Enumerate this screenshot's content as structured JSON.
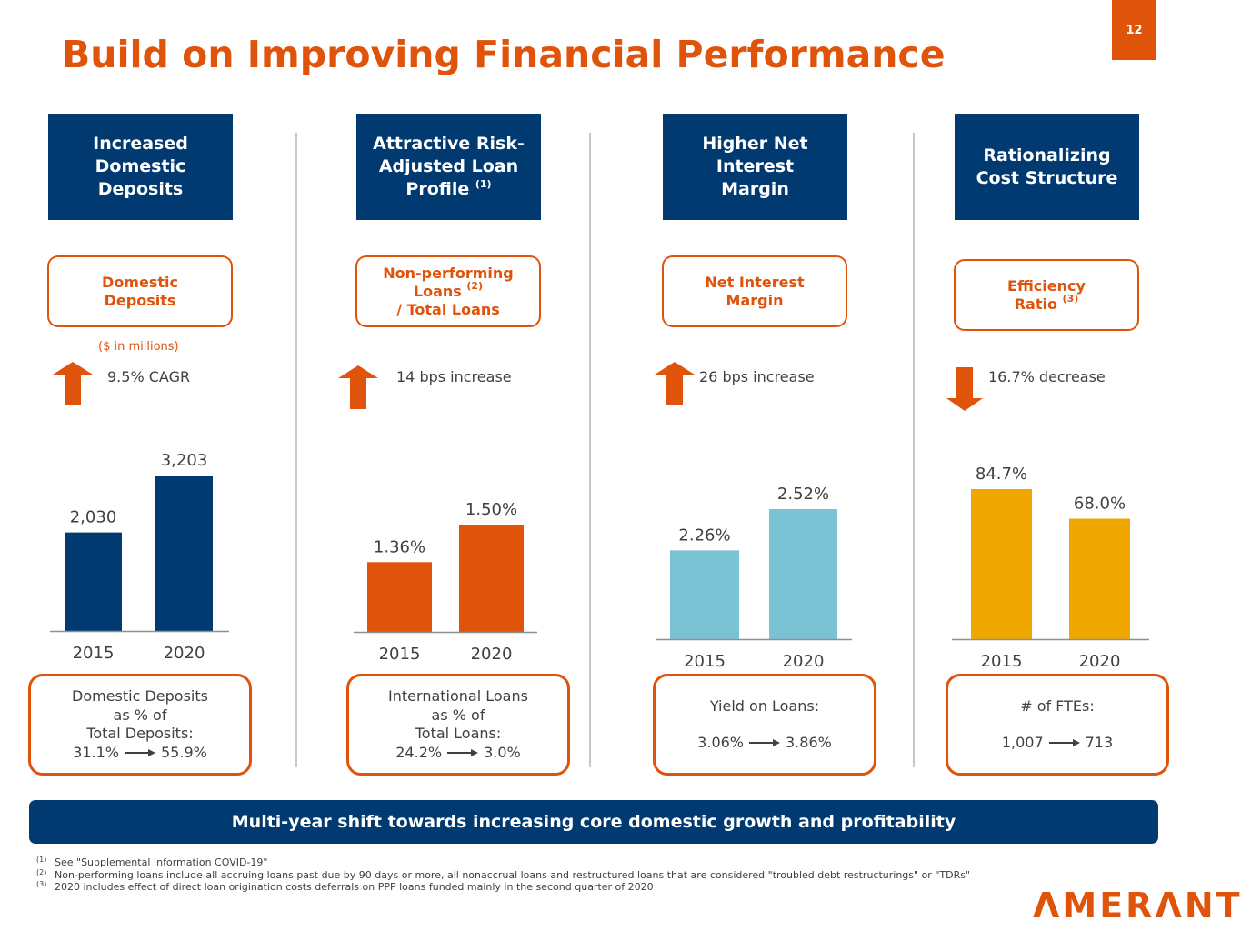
{
  "page": {
    "title": "Build on Improving Financial Performance",
    "page_number": "12"
  },
  "colors": {
    "accent_orange": "#E0530B",
    "navy": "#003A70",
    "light_blue": "#79C3D5",
    "gold": "#F0A800",
    "text_gray": "#404040"
  },
  "columns": [
    {
      "heading": [
        "Increased",
        "Domestic",
        "Deposits"
      ],
      "heading_sup": "",
      "metric": [
        "Domestic",
        "Deposits"
      ],
      "metric_sup": "",
      "units": "($ in millions)",
      "direction": "up",
      "change_text": "9.5% CAGR",
      "bottom": {
        "lines": [
          "Domestic Deposits",
          "as % of",
          "Total Deposits:"
        ],
        "from": "31.1%",
        "to": "55.9%"
      }
    },
    {
      "heading": [
        "Attractive Risk-",
        "Adjusted Loan",
        "Profile"
      ],
      "heading_sup": "(1)",
      "metric": [
        "Non-performing",
        "Loans",
        "/ Total Loans"
      ],
      "metric_sup": "(2)",
      "units": "",
      "direction": "up",
      "change_text": "14 bps increase",
      "bottom": {
        "lines": [
          "International Loans",
          "as % of",
          "Total Loans:"
        ],
        "from": "24.2%",
        "to": "3.0%"
      }
    },
    {
      "heading": [
        "Higher Net",
        "Interest",
        "Margin"
      ],
      "heading_sup": "",
      "metric": [
        "Net Interest",
        "Margin"
      ],
      "metric_sup": "",
      "units": "",
      "direction": "up",
      "change_text": "26 bps increase",
      "bottom": {
        "lines": [
          "Yield on Loans:"
        ],
        "from": "3.06%",
        "to": "3.86%"
      }
    },
    {
      "heading": [
        "Rationalizing",
        "Cost Structure"
      ],
      "heading_sup": "",
      "metric": [
        "Efficiency",
        "Ratio"
      ],
      "metric_sup": "(3)",
      "units": "",
      "direction": "down",
      "change_text": "16.7% decrease",
      "bottom": {
        "lines": [
          "# of FTEs:"
        ],
        "from": "1,007",
        "to": "713"
      }
    }
  ],
  "chart_data": [
    {
      "type": "bar",
      "title": "Domestic Deposits",
      "ylabel": "$ in millions",
      "categories": [
        "2015",
        "2020"
      ],
      "values": [
        2030,
        3203
      ],
      "labels": [
        "2,030",
        "3,203"
      ],
      "color": "#003A70",
      "ylim": [
        0,
        3203
      ],
      "grid": false
    },
    {
      "type": "bar",
      "title": "Non-performing Loans / Total Loans",
      "categories": [
        "2015",
        "2020"
      ],
      "values": [
        1.36,
        1.5
      ],
      "labels": [
        "1.36%",
        "1.50%"
      ],
      "color": "#E0530B",
      "ylim": [
        1.1,
        1.5
      ],
      "grid": false
    },
    {
      "type": "bar",
      "title": "Net Interest Margin",
      "categories": [
        "2015",
        "2020"
      ],
      "values": [
        2.26,
        2.52
      ],
      "labels": [
        "2.26%",
        "2.52%"
      ],
      "color": "#79C3D5",
      "ylim": [
        1.7,
        2.52
      ],
      "grid": false
    },
    {
      "type": "bar",
      "title": "Efficiency Ratio",
      "categories": [
        "2015",
        "2020"
      ],
      "values": [
        84.7,
        68.0
      ],
      "labels": [
        "84.7%",
        "68.0%"
      ],
      "color": "#F0A800",
      "ylim": [
        0,
        84.7
      ],
      "grid": false
    }
  ],
  "banner": "Multi-year shift towards increasing core domestic growth and profitability",
  "footnotes": [
    {
      "mark": "(1)",
      "text": "See \"Supplemental Information COVID-19\""
    },
    {
      "mark": "(2)",
      "text": "Non-performing loans include all accruing loans past due by 90 days or more, all nonaccrual loans and restructured loans that are considered \"troubled debt restructurings\" or \"TDRs\""
    },
    {
      "mark": "(3)",
      "text": "2020 includes effect of direct loan origination costs deferrals on PPP loans funded mainly in the second quarter of 2020"
    }
  ],
  "logo": "ΛMERΛNT"
}
